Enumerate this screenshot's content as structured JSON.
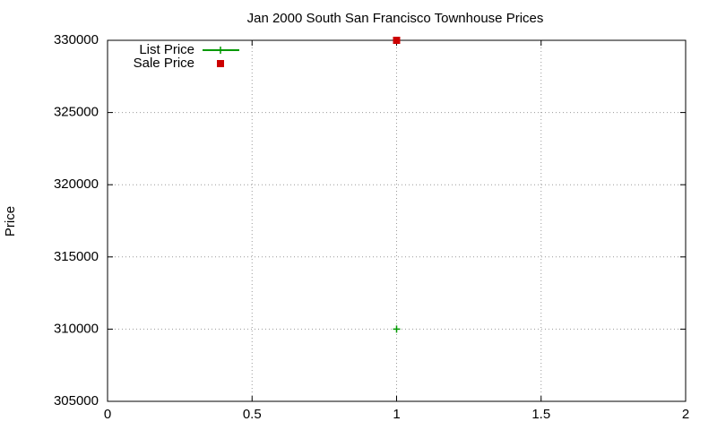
{
  "chart_data": {
    "type": "scatter",
    "title": "Jan 2000 South San Francisco Townhouse Prices",
    "y_label": "Price",
    "x": [
      1
    ],
    "series": [
      {
        "name": "List Price",
        "color": "#009900",
        "marker": "plus",
        "line": true,
        "values": [
          310000
        ]
      },
      {
        "name": "Sale Price",
        "color": "#cc0000",
        "marker": "square",
        "line": false,
        "values": [
          330000
        ]
      }
    ],
    "xlim": [
      0,
      2
    ],
    "xticks": [
      0,
      0.5,
      1,
      1.5,
      2
    ],
    "ylim": [
      305000,
      330000
    ],
    "yticks": [
      305000,
      310000,
      315000,
      320000,
      325000,
      330000
    ],
    "grid": true,
    "legend": "top-left"
  }
}
